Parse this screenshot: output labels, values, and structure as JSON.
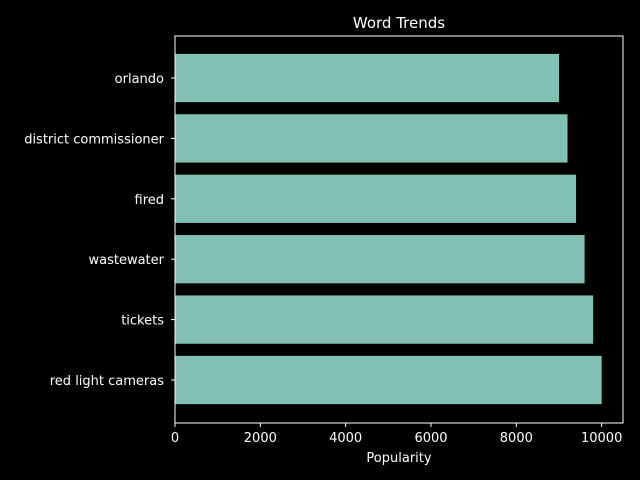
{
  "chart_data": {
    "type": "bar",
    "orientation": "horizontal",
    "title": "Word Trends",
    "xlabel": "Popularity",
    "ylabel": "",
    "categories": [
      "orlando",
      "district commissioner",
      "fired",
      "wastewater",
      "tickets",
      "red light cameras"
    ],
    "values": [
      9000,
      9200,
      9400,
      9600,
      9800,
      10000
    ],
    "xlim": [
      0,
      10500
    ],
    "xticks": [
      0,
      2000,
      4000,
      6000,
      8000,
      10000
    ],
    "grid": false,
    "legend": "none",
    "bar_color": "#81c0b3",
    "background_color": "#000000",
    "axis_color": "#ffffff"
  }
}
